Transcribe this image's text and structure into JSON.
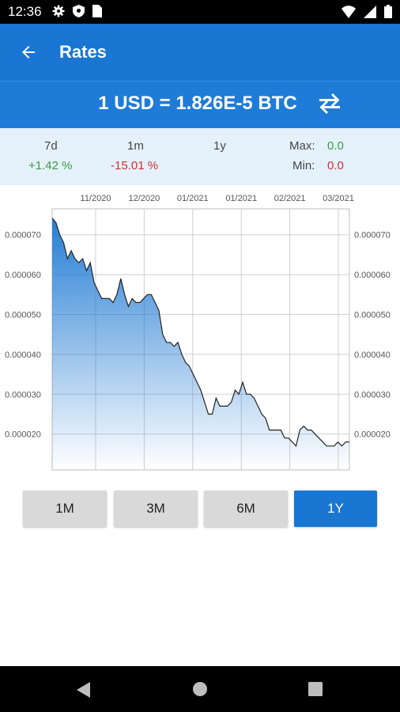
{
  "status_bar": {
    "time": "12:36"
  },
  "app_bar": {
    "title": "Rates",
    "back_icon": "arrow-back-icon"
  },
  "conversion": {
    "rate_text": "1 USD = 1.826E-5 BTC",
    "swap_icon": "swap-horizontal-icon"
  },
  "stats": {
    "periods": [
      {
        "label": "7d",
        "value": "+1.42 %",
        "trend": "up"
      },
      {
        "label": "1m",
        "value": "-15.01 %",
        "trend": "down"
      },
      {
        "label": "1y",
        "value": "",
        "trend": "none"
      }
    ],
    "max_label": "Max:",
    "max_value": "0.0",
    "min_label": "Min:",
    "min_value": "0.0"
  },
  "colors": {
    "primary": "#1976d2",
    "up": "#3a9b3f",
    "down": "#d32f2f",
    "stats_bg": "#e4f1fb"
  },
  "chart_data": {
    "type": "area",
    "title": "",
    "xlabel": "",
    "ylabel": "",
    "x_tick_labels": [
      "11/2020",
      "12/2020",
      "01/2021",
      "01/2021",
      "02/2021",
      "03/2021"
    ],
    "y_tick_labels": [
      "0.000070",
      "0.000060",
      "0.000050",
      "0.000040",
      "0.000030",
      "0.000020"
    ],
    "ylim": [
      1.1e-05,
      7.65e-05
    ],
    "grid": true,
    "series": [
      {
        "values": [
          7.42e-05,
          7.3e-05,
          7e-05,
          6.8e-05,
          6.4e-05,
          6.6e-05,
          6.4e-05,
          6.3e-05,
          6.4e-05,
          6.1e-05,
          6.3e-05,
          5.8e-05,
          5.6e-05,
          5.4e-05,
          5.4e-05,
          5.4e-05,
          5.3e-05,
          5.5e-05,
          5.9e-05,
          5.5e-05,
          5.2e-05,
          5.4e-05,
          5.3e-05,
          5.3e-05,
          5.4e-05,
          5.5e-05,
          5.5e-05,
          5.3e-05,
          5.1e-05,
          4.5e-05,
          4.3e-05,
          4.3e-05,
          4.2e-05,
          4.3e-05,
          4e-05,
          3.8e-05,
          3.7e-05,
          3.5e-05,
          3.3e-05,
          3.1e-05,
          2.8e-05,
          2.5e-05,
          2.5e-05,
          2.9e-05,
          2.7e-05,
          2.7e-05,
          2.7e-05,
          2.8e-05,
          3.1e-05,
          3e-05,
          3.3e-05,
          3e-05,
          3e-05,
          2.9e-05,
          2.7e-05,
          2.5e-05,
          2.4e-05,
          2.1e-05,
          2.1e-05,
          2.1e-05,
          2.1e-05,
          1.9e-05,
          1.9e-05,
          1.8e-05,
          1.7e-05,
          2.1e-05,
          2.2e-05,
          2.1e-05,
          2.1e-05,
          2e-05,
          1.9e-05,
          1.8e-05,
          1.7e-05,
          1.7e-05,
          1.7e-05,
          1.8e-05,
          1.7e-05,
          1.8e-05,
          1.8e-05
        ]
      }
    ]
  },
  "range_buttons": [
    {
      "label": "1M",
      "active": false
    },
    {
      "label": "3M",
      "active": false
    },
    {
      "label": "6M",
      "active": false
    },
    {
      "label": "1Y",
      "active": true
    }
  ]
}
